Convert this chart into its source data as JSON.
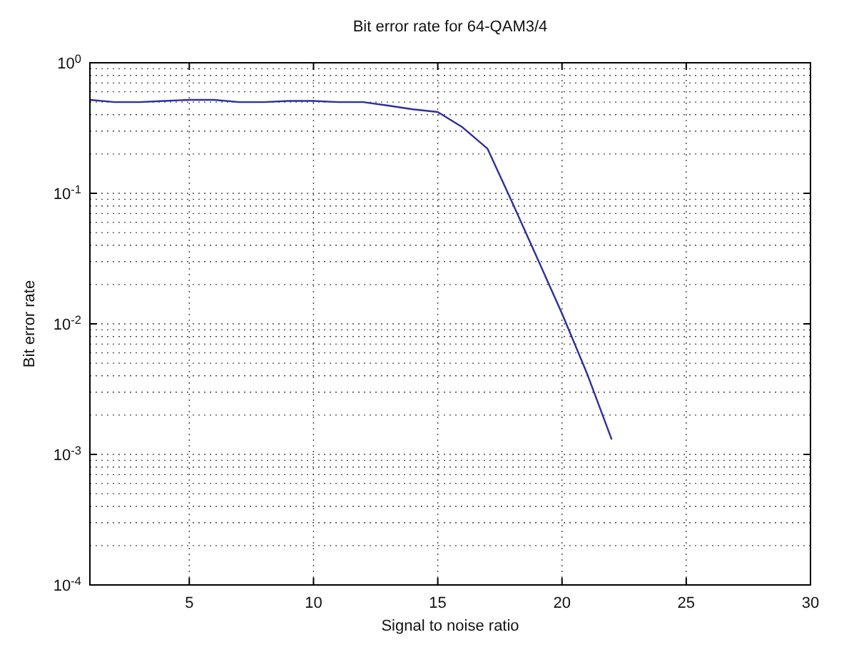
{
  "chart_data": {
    "type": "line",
    "title": "Bit error rate for 64-QAM3/4",
    "xlabel": "Signal to noise ratio",
    "ylabel": "Bit error rate",
    "log": "y",
    "grid": true,
    "marker": "none",
    "line_style": "solid",
    "x": [
      1,
      2,
      3,
      4,
      5,
      6,
      7,
      8,
      9,
      10,
      11,
      12,
      13,
      14,
      15,
      16,
      17,
      18,
      19,
      20,
      21,
      22
    ],
    "series": [
      {
        "color": "#2e2e9e",
        "values": [
          0.52,
          0.5,
          0.5,
          0.51,
          0.52,
          0.52,
          0.5,
          0.5,
          0.51,
          0.51,
          0.5,
          0.5,
          0.47,
          0.44,
          0.42,
          0.32,
          0.22,
          0.085,
          0.032,
          0.012,
          0.0042,
          0.0013
        ]
      }
    ],
    "xlim": [
      1,
      30
    ],
    "xticks": [
      5,
      10,
      15,
      20,
      25,
      30
    ],
    "ylim": [
      0.0001,
      1
    ],
    "yticks": [
      {
        "value": 0.0001,
        "label": "10$^{-4}$"
      },
      {
        "value": 0.001,
        "label": "10$^{-3}$"
      },
      {
        "value": 0.01,
        "label": "10$^{-2}$"
      },
      {
        "value": 0.1,
        "label": "10$^{-1}$"
      },
      {
        "value": 1,
        "label": "10$^{0}$"
      }
    ]
  }
}
